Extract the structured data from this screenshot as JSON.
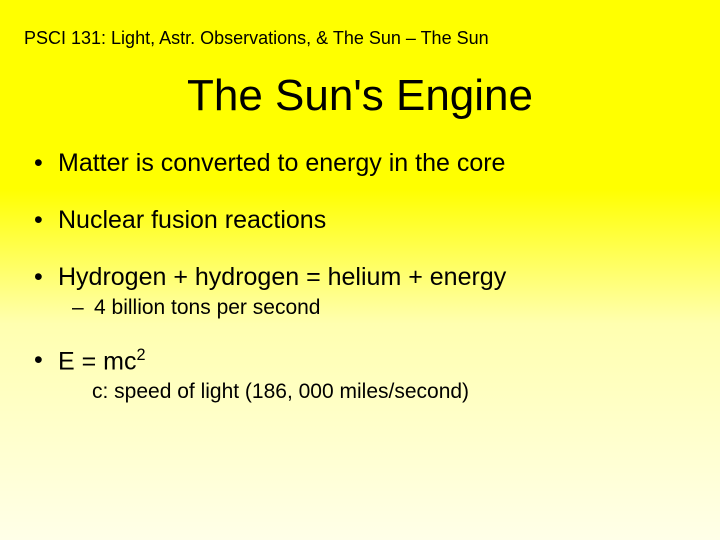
{
  "header": "PSCI 131: Light, Astr. Observations, & The Sun – The Sun",
  "title": "The Sun's Engine",
  "bullets": {
    "b1": "Matter is converted to energy in the core",
    "b2": "Nuclear fusion reactions",
    "b3": "Hydrogen + hydrogen = helium + energy",
    "b3_sub": "4 billion tons per second",
    "b4_pre": "E = mc",
    "b4_sup": "2",
    "b4_sub": "c: speed of light (186, 000 miles/second)"
  },
  "colors": {
    "bg_top": "#ffff00",
    "bg_bottom": "#ffffe8",
    "text": "#000000"
  },
  "typography": {
    "header_fontsize": 18,
    "title_fontsize": 44,
    "bullet_fontsize": 25,
    "sub_fontsize": 21,
    "font_family": "Arial"
  }
}
